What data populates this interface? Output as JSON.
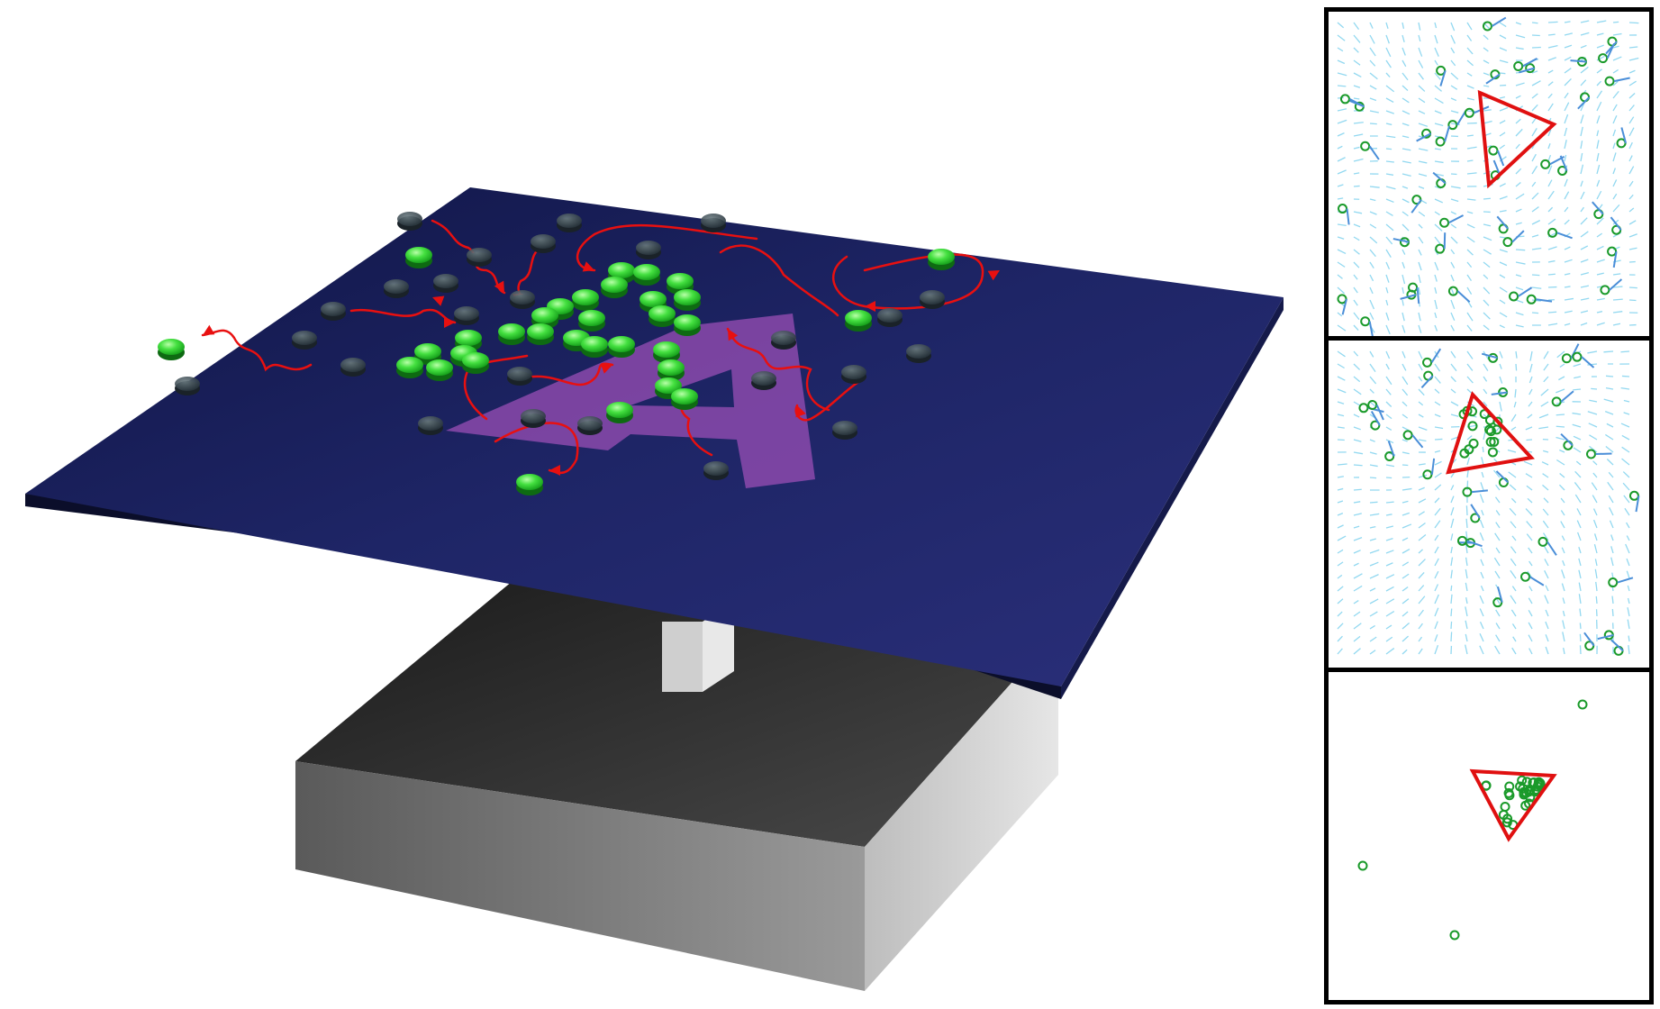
{
  "figure": {
    "scene": {
      "plate_color": "#1e2460",
      "plate_edge_color": "#0b0e2a",
      "letter": "A",
      "letter_color": "#9c4fb8",
      "active_particle_color": "#33dd33",
      "inactive_particle_color": "#3a4a55",
      "trajectory_color": "#e81010",
      "base_color": "#3d3d3d"
    },
    "panels": [
      {
        "name": "flow-field-initial",
        "triangle_color": "#e01010",
        "particle_color": "#1a9a2a",
        "arrow_color": "#5bc8e8",
        "has_flow_field": true
      },
      {
        "name": "flow-field-focusing",
        "triangle_color": "#e01010",
        "particle_color": "#1a9a2a",
        "arrow_color": "#5bc8e8",
        "has_flow_field": true
      },
      {
        "name": "particles-trapped",
        "triangle_color": "#e01010",
        "particle_color": "#1a9a2a",
        "arrow_color": "#5bc8e8",
        "has_flow_field": false
      }
    ]
  }
}
